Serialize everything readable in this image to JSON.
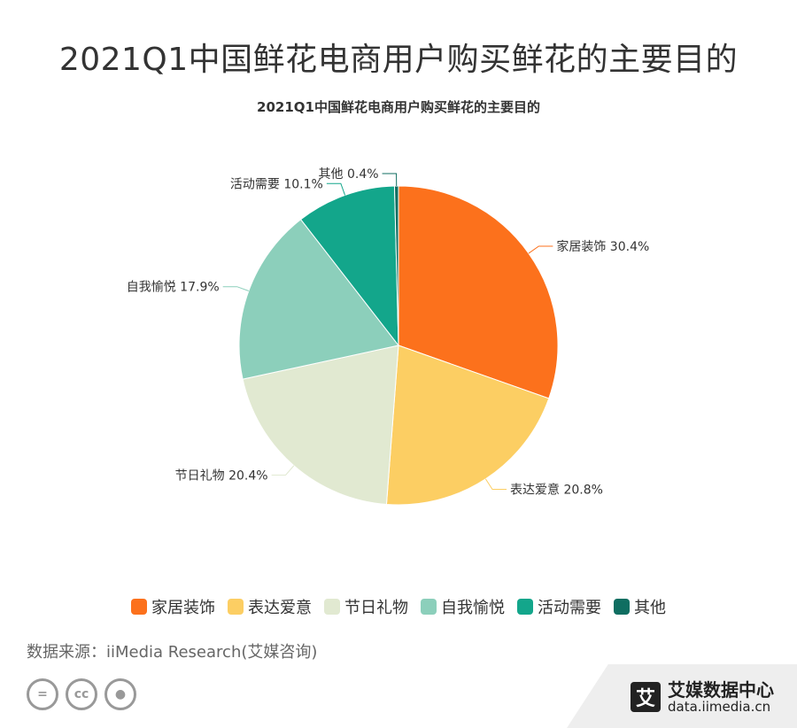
{
  "page": {
    "title": "2021Q1中国鲜花电商用户购买鲜花的主要目的",
    "source": "数据来源：iiMedia Research(艾媒咨询)",
    "brand_name": "艾媒数据中心",
    "brand_url": "data.iimedia.cn",
    "brand_logo": "艾"
  },
  "chart_data": {
    "type": "pie",
    "title": "2021Q1中国鲜花电商用户购买鲜花的主要目的",
    "categories": [
      "家居装饰",
      "表达爱意",
      "节日礼物",
      "自我愉悦",
      "活动需要",
      "其他"
    ],
    "values": [
      30.4,
      20.8,
      20.4,
      17.9,
      10.1,
      0.4
    ],
    "data_labels": [
      "家居装饰 30.4%",
      "表达爱意 20.8%",
      "节日礼物 20.4%",
      "自我愉悦 17.9%",
      "活动需要 10.1%",
      "其他 0.4%"
    ],
    "colors": [
      "#fc711c",
      "#fcce63",
      "#e1e9d1",
      "#8ccfbb",
      "#13a68b",
      "#0f6e61"
    ],
    "unit": "%",
    "legend_position": "bottom"
  }
}
